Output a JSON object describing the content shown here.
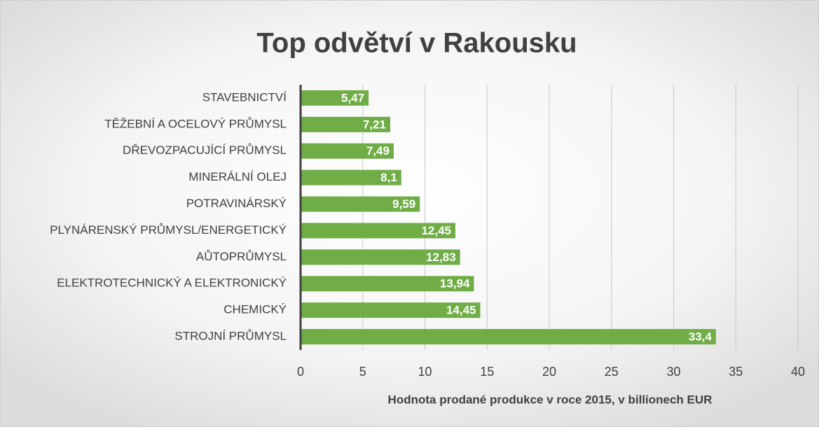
{
  "chart_data": {
    "type": "bar",
    "orientation": "horizontal",
    "title": "Top odvětví v Rakousku",
    "x_label": "Hodnota prodané produkce v roce 2015, v billionech EUR",
    "categories": [
      "STAVEBNICTVÍ",
      "TĚŽEBNÍ A OCELOVÝ PRŮMYSL",
      "DŘEVOZPACUJÍCÍ PRŮMYSL",
      "MINERÁLNÍ OLEJ",
      "POTRAVINÁRSKÝ",
      "PLYNÁRENSKÝ PRŮMYSL/ENERGETICKÝ",
      "AŮTOPRŮMYSL",
      "ELEKTROTECHNICKÝ A ELEKTRONICKÝ",
      "CHEMICKÝ",
      "STROJNÍ PRŮMYSL"
    ],
    "values": [
      5.47,
      7.21,
      7.49,
      8.1,
      9.59,
      12.45,
      12.83,
      13.94,
      14.45,
      33.4
    ],
    "value_labels": [
      "5,47",
      "7,21",
      "7,49",
      "8,1",
      "9,59",
      "12,45",
      "12,83",
      "13,94",
      "14,45",
      "33,4"
    ],
    "color": "#70ad47",
    "xlim": [
      0,
      40
    ],
    "xticks": [
      0,
      5,
      10,
      15,
      20,
      25,
      30,
      35,
      40
    ],
    "grid": true
  }
}
